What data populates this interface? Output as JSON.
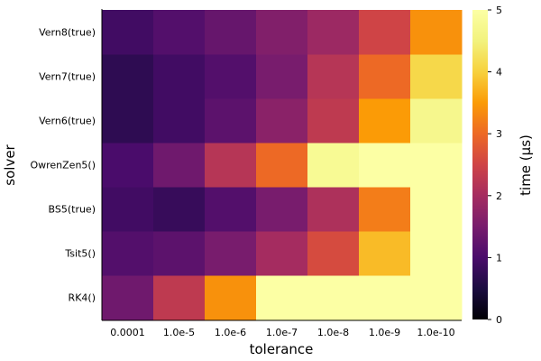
{
  "chart_data": {
    "type": "heatmap",
    "title": "",
    "xlabel": "tolerance",
    "ylabel": "solver",
    "colorbar_label": "time (µs)",
    "x_categories": [
      "0.0001",
      "1.0e-5",
      "1.0e-6",
      "1.0e-7",
      "1.0e-8",
      "1.0e-9",
      "1.0e-10"
    ],
    "y_categories": [
      "RK4()",
      "Tsit5()",
      "BS5(true)",
      "OwrenZen5()",
      "Vern6(true)",
      "Vern7(true)",
      "Vern8(true)"
    ],
    "values": [
      [
        1.4,
        2.3,
        3.4,
        5.0,
        5.0,
        5.0,
        5.0
      ],
      [
        1.1,
        1.2,
        1.5,
        2.0,
        2.6,
        3.8,
        5.0
      ],
      [
        0.9,
        0.8,
        1.1,
        1.5,
        2.1,
        3.2,
        5.0
      ],
      [
        1.0,
        1.4,
        2.2,
        3.0,
        4.8,
        5.0,
        5.0
      ],
      [
        0.7,
        0.9,
        1.2,
        1.7,
        2.3,
        3.5,
        4.7
      ],
      [
        0.7,
        0.9,
        1.1,
        1.5,
        2.2,
        3.0,
        4.1
      ],
      [
        0.9,
        1.1,
        1.3,
        1.6,
        1.9,
        2.5,
        3.4
      ]
    ],
    "zlim": [
      0,
      5
    ],
    "colorbar_ticks": [
      "0",
      "1",
      "2",
      "3",
      "4",
      "5"
    ],
    "colormap": "inferno",
    "grid": false,
    "legend": "colorbar-right"
  }
}
